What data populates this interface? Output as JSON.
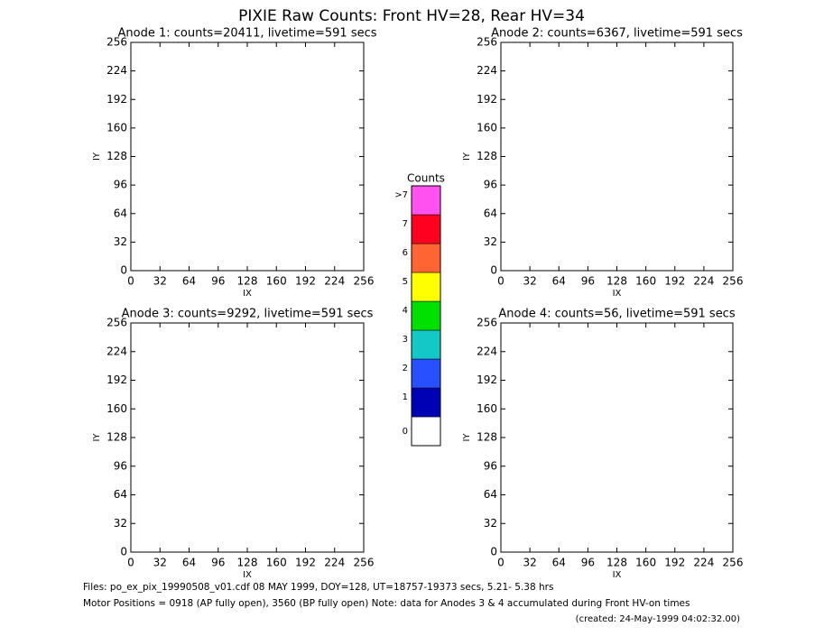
{
  "header": {
    "title": "PIXIE Raw Counts:  Front HV=28, Rear HV=34"
  },
  "chart_data": [
    {
      "type": "heatmap",
      "title": "Anode 1: counts=20411, livetime=591 secs",
      "xlabel": "IX",
      "ylabel": "IY",
      "xlim": [
        0,
        256
      ],
      "ylim": [
        0,
        256
      ],
      "xticks": [
        0,
        32,
        64,
        96,
        128,
        160,
        192,
        224,
        256
      ],
      "yticks": [
        0,
        32,
        64,
        96,
        128,
        160,
        192,
        224,
        256
      ]
    },
    {
      "type": "heatmap",
      "title": "Anode 2: counts=6367, livetime=591 secs",
      "xlabel": "IX",
      "ylabel": "IY",
      "xlim": [
        0,
        256
      ],
      "ylim": [
        0,
        256
      ],
      "xticks": [
        0,
        32,
        64,
        96,
        128,
        160,
        192,
        224,
        256
      ],
      "yticks": [
        0,
        32,
        64,
        96,
        128,
        160,
        192,
        224,
        256
      ]
    },
    {
      "type": "heatmap",
      "title": "Anode 3: counts=9292, livetime=591 secs",
      "xlabel": "IX",
      "ylabel": "IY",
      "xlim": [
        0,
        256
      ],
      "ylim": [
        0,
        256
      ],
      "xticks": [
        0,
        32,
        64,
        96,
        128,
        160,
        192,
        224,
        256
      ],
      "yticks": [
        0,
        32,
        64,
        96,
        128,
        160,
        192,
        224,
        256
      ]
    },
    {
      "type": "heatmap",
      "title": "Anode 4: counts=56, livetime=591 secs",
      "xlabel": "IX",
      "ylabel": "IY",
      "xlim": [
        0,
        256
      ],
      "ylim": [
        0,
        256
      ],
      "xticks": [
        0,
        32,
        64,
        96,
        128,
        160,
        192,
        224,
        256
      ],
      "yticks": [
        0,
        32,
        64,
        96,
        128,
        160,
        192,
        224,
        256
      ]
    }
  ],
  "colorbar": {
    "title": "Counts",
    "labels": [
      "0",
      "1",
      "2",
      "3",
      "4",
      "5",
      "6",
      "7",
      ">7"
    ],
    "colors": [
      "#ffffff",
      "#0000b4",
      "#2850ff",
      "#14c8c8",
      "#00e000",
      "#ffff00",
      "#ff6432",
      "#ff0020",
      "#ff50f0"
    ]
  },
  "footer": {
    "files": "Files: po_ex_pix_19990508_v01.cdf    08 MAY 1999, DOY=128, UT=18757-19373 secs,  5.21- 5.38 hrs",
    "motor": "Motor Positions = 0918 (AP fully open), 3560 (BP fully open)    Note: data for Anodes 3 & 4 accumulated during Front HV-on times",
    "created": "(created: 24-May-1999 04:02:32.00)"
  }
}
